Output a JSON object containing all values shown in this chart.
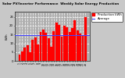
{
  "title": "Solar PV/Inverter Performance  Weekly Solar Energy Production",
  "title_fontsize": 3.0,
  "bar_color": "#ff0000",
  "avg_line_color": "#4444ff",
  "background_color": "#c8c8c8",
  "plot_bg_color": "#b0b0b0",
  "grid_color": "#ffffff",
  "values": [
    3.5,
    5.5,
    7.5,
    9.0,
    5.0,
    12.0,
    13.5,
    9.5,
    16.5,
    18.0,
    16.0,
    13.0,
    8.0,
    17.0,
    22.0,
    20.5,
    14.0,
    20.0,
    19.0,
    16.5,
    18.5,
    23.0,
    17.5,
    15.5,
    14.5,
    25.0
  ],
  "avg_value": 14.5,
  "ylim": [
    0,
    28
  ],
  "yticks": [
    0,
    5,
    10,
    15,
    20,
    25
  ],
  "ytick_labels": [
    "0",
    "5",
    "10",
    "15",
    "20",
    "25"
  ],
  "legend_bar_label": "Production kWh",
  "legend_line_label": "Average",
  "ylabel": "kWh",
  "tick_fontsize": 2.8,
  "legend_fontsize": 2.8
}
